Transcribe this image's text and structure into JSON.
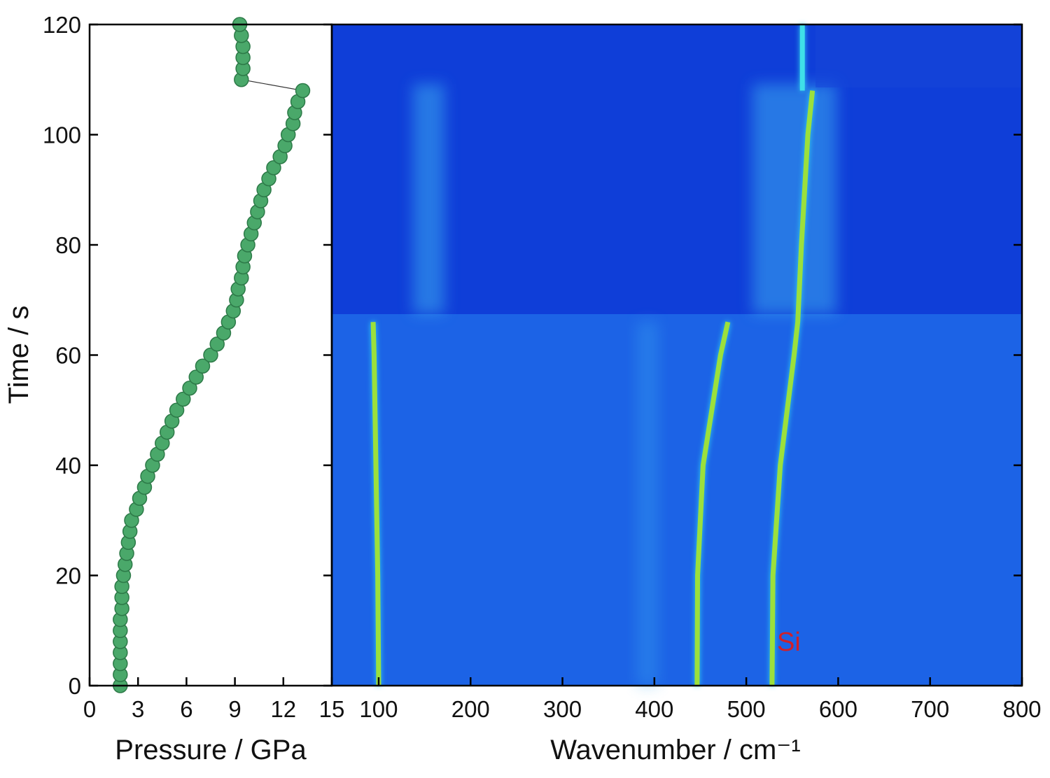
{
  "chart_data": [
    {
      "type": "scatter",
      "x_label": "Pressure / GPa",
      "y_label": "Time / s",
      "color": "#4aa86a",
      "xlim": [
        0,
        15
      ],
      "xticks": [
        0,
        3,
        6,
        9,
        12,
        15
      ],
      "ylim": [
        0,
        120
      ],
      "yticks": [
        0,
        20,
        40,
        60,
        80,
        100,
        120
      ],
      "x": [
        1.9,
        1.9,
        1.9,
        1.9,
        1.9,
        1.9,
        1.9,
        2.0,
        2.0,
        2.0,
        2.1,
        2.2,
        2.3,
        2.4,
        2.5,
        2.6,
        2.9,
        3.1,
        3.4,
        3.6,
        3.9,
        4.2,
        4.5,
        4.8,
        5.1,
        5.4,
        5.8,
        6.2,
        6.6,
        7.0,
        7.5,
        7.9,
        8.3,
        8.6,
        8.9,
        9.1,
        9.2,
        9.4,
        9.5,
        9.6,
        9.8,
        10.0,
        10.2,
        10.4,
        10.6,
        10.8,
        11.1,
        11.4,
        11.8,
        12.1,
        12.3,
        12.6,
        12.7,
        12.9,
        13.2,
        9.4,
        9.5,
        9.5,
        9.5,
        9.4,
        9.3
      ],
      "y": [
        0,
        2,
        4,
        6,
        8,
        10,
        12,
        14,
        16,
        18,
        20,
        22,
        24,
        26,
        28,
        30,
        32,
        34,
        36,
        38,
        40,
        42,
        44,
        46,
        48,
        50,
        52,
        54,
        56,
        58,
        60,
        62,
        64,
        66,
        68,
        70,
        72,
        74,
        76,
        78,
        80,
        82,
        84,
        86,
        88,
        90,
        92,
        94,
        96,
        98,
        100,
        102,
        104,
        106,
        108,
        110,
        112,
        114,
        116,
        118,
        120
      ]
    },
    {
      "type": "line",
      "x_label": "Wavenumber / cm⁻¹",
      "annotation": "Si",
      "xlim": [
        49,
        800
      ],
      "xticks": [
        100,
        200,
        300,
        400,
        500,
        600,
        700,
        800
      ],
      "ylim": [
        0,
        120
      ],
      "series": [
        {
          "color": "#9be03c",
          "x": [
            100,
            99,
            97,
            95,
            94
          ],
          "y": [
            0,
            20,
            40,
            60,
            66
          ]
        },
        {
          "color": "#9be03c",
          "x": [
            446.5,
            447,
            453,
            472,
            480
          ],
          "y": [
            0,
            20,
            40,
            60,
            66
          ]
        },
        {
          "color": "#9be03c",
          "x": [
            528,
            529,
            537,
            552,
            556,
            560,
            567,
            572
          ],
          "y": [
            0,
            20,
            40,
            60,
            66,
            80,
            100,
            108
          ]
        },
        {
          "color": "#3fe0e8",
          "x": [
            561,
            561
          ],
          "y": [
            108,
            120
          ]
        }
      ]
    }
  ]
}
